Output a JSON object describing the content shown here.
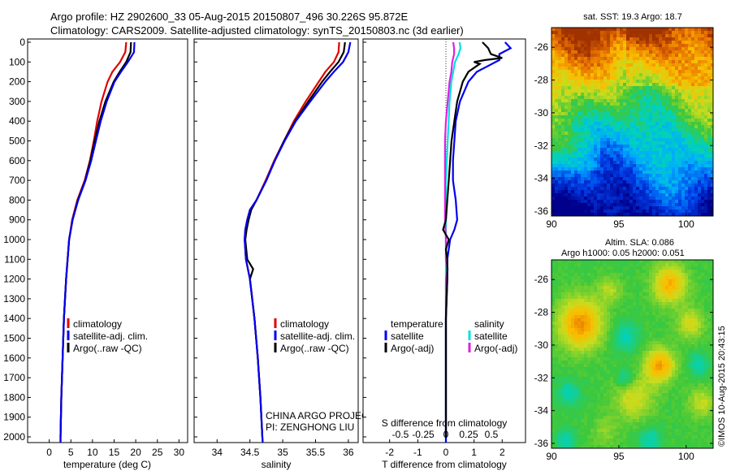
{
  "header": {
    "line1": "Argo profile: HZ 2902600_33 05-Aug-2015 20150807_496 30.226S 95.872E",
    "line2": "Climatology: CARS2009. Satellite-adjusted climatology: synTS_20150803.nc (3d earlier)"
  },
  "colors": {
    "climatology": "#e00000",
    "satellite": "#0000ee",
    "argo": "#000000",
    "satellite_s": "#00e0e0",
    "argo_s": "#e020e0"
  },
  "chart_data": [
    {
      "type": "line",
      "xlabel": "temperature (deg C)",
      "ylabel": "",
      "xlim": [
        -5,
        32
      ],
      "ylim": [
        2050,
        0
      ],
      "xticks": [
        "0",
        "5",
        "10",
        "15",
        "20",
        "25",
        "30"
      ],
      "yticks": [
        "0",
        "100",
        "200",
        "300",
        "400",
        "500",
        "600",
        "700",
        "800",
        "900",
        "1000",
        "1100",
        "1200",
        "1300",
        "1400",
        "1500",
        "1600",
        "1700",
        "1800",
        "1900",
        "2000"
      ],
      "legend": [
        "climatology",
        "satellite-adj. clim.",
        "Argo(..raw -QC)"
      ],
      "series": [
        {
          "name": "climatology",
          "depth": [
            0,
            50,
            100,
            150,
            200,
            300,
            400,
            500,
            600,
            700,
            800,
            900,
            1000,
            1200,
            1400,
            1600,
            1800,
            2000,
            2050
          ],
          "values": [
            17.8,
            17.6,
            16.4,
            14.6,
            13.5,
            12.1,
            11.1,
            10.3,
            9.4,
            8.2,
            6.5,
            5.3,
            4.6,
            3.9,
            3.4,
            3.1,
            2.8,
            2.6,
            2.6
          ]
        },
        {
          "name": "satellite-adj. clim.",
          "depth": [
            0,
            50,
            100,
            150,
            200,
            300,
            400,
            500,
            600,
            700,
            800,
            900,
            1000,
            1200,
            1400,
            1600,
            1800,
            2000,
            2050
          ],
          "values": [
            19.7,
            19.6,
            18.2,
            16.6,
            15.1,
            13.3,
            11.9,
            10.8,
            9.7,
            8.4,
            6.7,
            5.4,
            4.6,
            3.9,
            3.4,
            3.1,
            2.8,
            2.6,
            2.6
          ]
        },
        {
          "name": "Argo(..raw -QC)",
          "depth": [
            0,
            50,
            100,
            150,
            200,
            300,
            400,
            500,
            600,
            700,
            800,
            900,
            1000,
            1200,
            1400,
            1600,
            1800,
            2000
          ],
          "values": [
            18.9,
            18.8,
            17.8,
            16.3,
            14.9,
            13.0,
            11.6,
            10.5,
            9.5,
            8.3,
            6.6,
            5.4,
            4.6,
            3.9,
            3.4,
            3.1,
            2.8,
            2.6
          ]
        }
      ]
    },
    {
      "type": "line",
      "xlabel": "salinity",
      "ylabel": "",
      "xlim": [
        33.65,
        36.15
      ],
      "ylim": [
        2050,
        0
      ],
      "xticks": [
        "34",
        "34.5",
        "35",
        "35.5",
        "36"
      ],
      "legend": [
        "climatology",
        "satellite-adj. clim.",
        "Argo(..raw -QC)"
      ],
      "annotation": [
        "CHINA ARGO PROJECT",
        "PI: ZENGHONG LIU"
      ],
      "series": [
        {
          "name": "climatology",
          "depth": [
            0,
            50,
            100,
            150,
            200,
            300,
            400,
            500,
            600,
            700,
            800,
            850,
            900,
            950,
            1000,
            1100,
            1200,
            1400,
            1600,
            1800,
            2000,
            2050
          ],
          "values": [
            35.86,
            35.85,
            35.78,
            35.65,
            35.55,
            35.35,
            35.17,
            35.02,
            34.87,
            34.74,
            34.6,
            34.5,
            34.46,
            34.43,
            34.42,
            34.44,
            34.5,
            34.57,
            34.62,
            34.66,
            34.69,
            34.7
          ]
        },
        {
          "name": "satellite-adj. clim.",
          "depth": [
            0,
            50,
            100,
            150,
            200,
            300,
            400,
            500,
            600,
            700,
            800,
            850,
            900,
            950,
            1000,
            1100,
            1200,
            1400,
            1600,
            1800,
            2000,
            2050
          ],
          "values": [
            36.03,
            36.0,
            35.92,
            35.78,
            35.65,
            35.42,
            35.2,
            35.03,
            34.88,
            34.75,
            34.6,
            34.5,
            34.46,
            34.43,
            34.42,
            34.44,
            34.5,
            34.57,
            34.62,
            34.66,
            34.69,
            34.7
          ]
        },
        {
          "name": "Argo(..raw -QC)",
          "depth": [
            0,
            50,
            100,
            150,
            200,
            300,
            400,
            500,
            600,
            700,
            800,
            850,
            900,
            950,
            1000,
            1100,
            1150,
            1200,
            1400,
            1600,
            1800,
            2000
          ],
          "values": [
            35.95,
            35.93,
            35.85,
            35.72,
            35.6,
            35.39,
            35.19,
            35.02,
            34.88,
            34.75,
            34.6,
            34.52,
            34.48,
            34.45,
            34.43,
            34.46,
            34.55,
            34.5,
            34.57,
            34.62,
            34.66,
            34.69
          ]
        }
      ]
    },
    {
      "type": "line",
      "xlabel": "T difference from climatology",
      "xlabel2": "S difference from climatology",
      "xlim": [
        -2.8,
        2.8
      ],
      "ylim": [
        2050,
        0
      ],
      "xticks": [
        "-2",
        "-1",
        "0",
        "1",
        "2"
      ],
      "xticks2": [
        "-0.5",
        "-0.25",
        "0",
        "0.25",
        "0.5"
      ],
      "legend_titles": [
        "temperature",
        "salinity"
      ],
      "legend": [
        "satellite",
        "Argo(-adj)",
        "satellite",
        "Argo(-adj)"
      ],
      "series": [
        {
          "name": "satellite",
          "depth": [
            0,
            30,
            60,
            90,
            120,
            150,
            200,
            300,
            400,
            500,
            600,
            700,
            800,
            900,
            950,
            1000,
            1050,
            1100,
            1200,
            1400,
            1600,
            1800,
            2000,
            2050
          ],
          "values": [
            2.1,
            2.3,
            1.9,
            1.9,
            1.5,
            1.1,
            0.8,
            0.5,
            0.35,
            0.3,
            0.25,
            0.25,
            0.35,
            0.4,
            0.3,
            0.15,
            0.1,
            0.05,
            0.05,
            0.0,
            0.0,
            0.0,
            0.0,
            0.0
          ]
        },
        {
          "name": "Argo(-adj)",
          "depth": [
            0,
            30,
            60,
            80,
            90,
            100,
            110,
            150,
            200,
            300,
            400,
            500,
            600,
            700,
            800,
            900,
            950,
            1000,
            1050,
            1100,
            1200,
            1400,
            1600,
            1800,
            2000
          ],
          "values": [
            1.3,
            1.5,
            1.6,
            2.0,
            1.4,
            1.0,
            1.2,
            0.8,
            0.6,
            0.4,
            0.3,
            0.2,
            0.15,
            0.1,
            0.05,
            0.0,
            -0.1,
            0.1,
            0.0,
            0.05,
            0.05,
            0.0,
            0.0,
            0.0,
            0.0
          ]
        },
        {
          "name": "satellite",
          "depth": [
            0,
            30,
            60,
            100,
            150,
            200,
            300,
            400,
            500,
            600,
            700,
            800,
            900,
            1000,
            1100,
            1200,
            1400,
            1600,
            1800,
            2000,
            2050
          ],
          "values": [
            0.15,
            0.16,
            0.14,
            0.1,
            0.08,
            0.06,
            0.04,
            0.03,
            0.02,
            0.01,
            0.0,
            0.0,
            0.0,
            0.0,
            0.0,
            0.0,
            0.0,
            0.0,
            0.0,
            0.0,
            0.0
          ]
        },
        {
          "name": "Argo(-adj)",
          "depth": [
            0,
            30,
            60,
            100,
            150,
            200,
            300,
            400,
            500,
            600,
            700,
            800,
            900,
            1000,
            1100,
            1150,
            1200,
            1300,
            1400,
            1600,
            1800,
            2000
          ],
          "values": [
            0.08,
            0.09,
            0.09,
            0.07,
            0.06,
            0.04,
            0.02,
            0.0,
            -0.01,
            -0.01,
            -0.01,
            -0.01,
            -0.01,
            0.0,
            0.0,
            0.02,
            0.0,
            0.0,
            0.0,
            0.0,
            0.0,
            0.0
          ]
        }
      ]
    },
    {
      "type": "heatmap",
      "title": "sat. SST: 19.3 Argo: 18.7",
      "xticks": [
        "90",
        "95",
        "100"
      ],
      "yticks": [
        "-26",
        "-28",
        "-30",
        "-32",
        "-34",
        "-36"
      ],
      "xlim": [
        90,
        102
      ],
      "ylim": [
        -36.3,
        -24.8
      ]
    },
    {
      "type": "heatmap",
      "title_lines": [
        "Altim. SLA: 0.086",
        "Argo h1000: 0.05 h2000: 0.051"
      ],
      "xticks": [
        "90",
        "95",
        "100"
      ],
      "yticks": [
        "-26",
        "-28",
        "-30",
        "-32",
        "-34",
        "-36"
      ],
      "xlim": [
        90,
        102
      ],
      "ylim": [
        -36.3,
        -24.8
      ]
    }
  ],
  "stamp": "©IMOS 10-Aug-2015 20:43:15"
}
